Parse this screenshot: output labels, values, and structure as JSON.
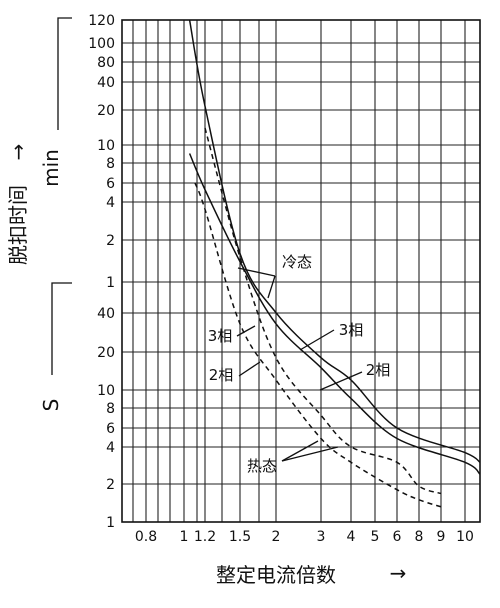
{
  "chart_data": {
    "type": "line",
    "title": "",
    "xlabel": "整定电流倍数",
    "xlabel_arrow": "→",
    "ylabel": "脱扣时间",
    "ylabel_arrow": "→",
    "y_unit_min": "min",
    "y_unit_s": "S",
    "x_scale": "log",
    "y_scale": "log (two segments: minutes above, seconds below)",
    "grid": true,
    "xlim": [
      0.6,
      12
    ],
    "x_ticks": [
      "0.8",
      "1",
      "1.2",
      "1.5",
      "2",
      "3",
      "4",
      "5",
      "6",
      "8",
      "9",
      "10"
    ],
    "x_tick_values": [
      0.8,
      1,
      1.2,
      1.5,
      2,
      3,
      4,
      5,
      6,
      8,
      9,
      10
    ],
    "y_ticks_min": [
      "120",
      "100",
      "80",
      "40",
      "20",
      "10",
      "8",
      "6",
      "4",
      "2",
      "1"
    ],
    "y_ticks_s": [
      "40",
      "20",
      "10",
      "8",
      "6",
      "4",
      "2",
      "1"
    ],
    "series": [
      {
        "name": "3相",
        "state": "冷态",
        "style": "solid",
        "points": [
          [
            1.05,
            130
          ],
          [
            1.2,
            22
          ],
          [
            1.5,
            1.6
          ],
          [
            2,
            0.67
          ],
          [
            3,
            0.3
          ],
          [
            4,
            0.2
          ],
          [
            6,
            0.1
          ],
          [
            10,
            0.06
          ],
          [
            12,
            0.05
          ]
        ]
      },
      {
        "name": "2相",
        "state": "冷态",
        "style": "solid",
        "points": [
          [
            1.05,
            9
          ],
          [
            1.2,
            5.2
          ],
          [
            1.5,
            1.4
          ],
          [
            2,
            0.55
          ],
          [
            3,
            0.25
          ],
          [
            4,
            0.15
          ],
          [
            6,
            0.08
          ],
          [
            10,
            0.05
          ],
          [
            12,
            0.04
          ]
        ]
      },
      {
        "name": "3相",
        "state": "热态",
        "style": "dashed",
        "points": [
          [
            1.2,
            14
          ],
          [
            1.5,
            1.5
          ],
          [
            2,
            0.3
          ],
          [
            3,
            0.12
          ],
          [
            4,
            0.067
          ],
          [
            6,
            0.05
          ],
          [
            8,
            0.032
          ],
          [
            9,
            0.028
          ]
        ]
      },
      {
        "name": "2相",
        "state": "热态",
        "style": "dashed",
        "points": [
          [
            1.1,
            6
          ],
          [
            1.2,
            3.5
          ],
          [
            1.5,
            0.55
          ],
          [
            2,
            0.2
          ],
          [
            3,
            0.08
          ],
          [
            4,
            0.05
          ],
          [
            6,
            0.03
          ],
          [
            8,
            0.025
          ],
          [
            9,
            0.022
          ]
        ]
      }
    ],
    "annotations": [
      {
        "text": "冷态"
      },
      {
        "text": "3相"
      },
      {
        "text": "2相"
      },
      {
        "text": "3相"
      },
      {
        "text": "2相"
      },
      {
        "text": "热态"
      }
    ]
  }
}
